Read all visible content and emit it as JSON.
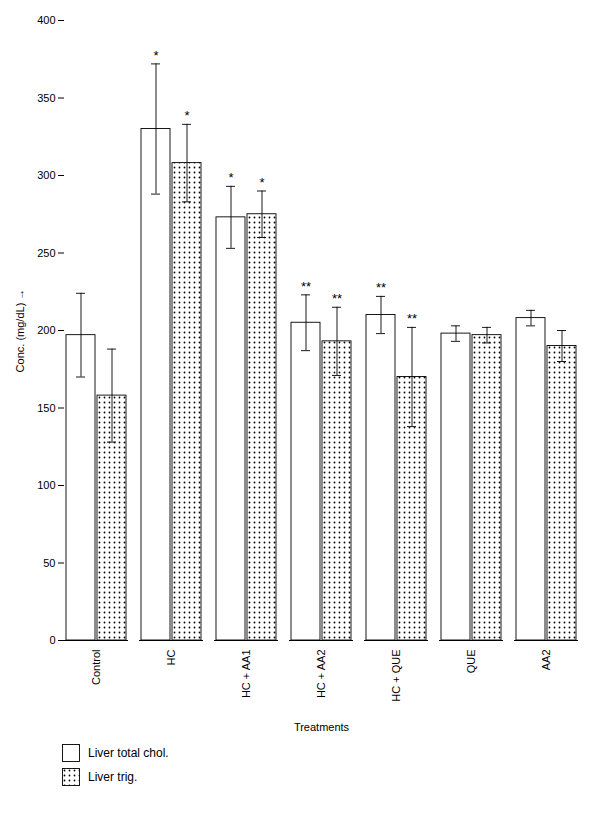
{
  "chart_data": {
    "type": "bar",
    "categories": [
      "Control",
      "HC",
      "HC + AA1",
      "HC + AA2",
      "HC + QUE",
      "QUE",
      "AA2"
    ],
    "series": [
      {
        "name": "Liver total chol.",
        "color": "#ffffff",
        "values": [
          197,
          330,
          273,
          205,
          210,
          198,
          208
        ],
        "errors": [
          27,
          42,
          20,
          18,
          12,
          5,
          5
        ],
        "annotations": [
          null,
          "*",
          "*",
          "**",
          "**",
          null,
          null
        ]
      },
      {
        "name": "Liver trig.",
        "color": "#ffffff",
        "values": [
          158,
          308,
          275,
          193,
          170,
          197,
          190
        ],
        "errors": [
          30,
          25,
          15,
          22,
          32,
          5,
          10
        ],
        "annotations": [
          null,
          "*",
          "*",
          "**",
          "**",
          null,
          null
        ]
      }
    ],
    "xlabel": "Treatments",
    "ylabel": "Conc. (mg/dL)",
    "ylim": [
      0,
      400
    ],
    "yticks": [
      0,
      50,
      100,
      150,
      200,
      250,
      300,
      350,
      400
    ],
    "legend": "bottom"
  }
}
